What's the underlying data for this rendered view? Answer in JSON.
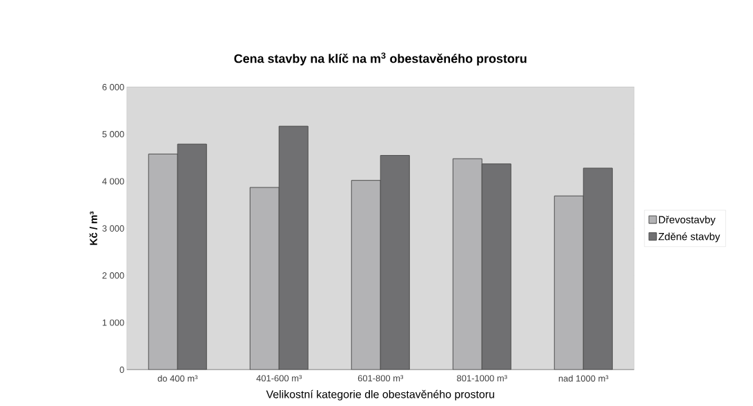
{
  "chart_data": {
    "type": "bar",
    "title": "Cena stavby na klíč na m$^{3}$ obestavěného prostoru",
    "xlabel": "Velikostní kategorie dle obestavěného prostoru",
    "ylabel": "Kč / m³",
    "categories": [
      "do 400 m³",
      "401-600 m³",
      "601-800 m³",
      "801-1000 m³",
      "nad 1000 m³"
    ],
    "series": [
      {
        "name": "Dřevostavby",
        "color": "#b3b3b5",
        "values": [
          4580,
          3870,
          4020,
          4480,
          3690
        ]
      },
      {
        "name": "Zděné stavby",
        "color": "#707072",
        "values": [
          4790,
          5170,
          4550,
          4370,
          4280
        ]
      }
    ],
    "ylim": [
      0,
      6000
    ],
    "yticks": [
      {
        "value": 0,
        "label": "0"
      },
      {
        "value": 1000,
        "label": "1 000"
      },
      {
        "value": 2000,
        "label": "2 000"
      },
      {
        "value": 3000,
        "label": "3 000"
      },
      {
        "value": 4000,
        "label": "4 000"
      },
      {
        "value": 5000,
        "label": "5 000"
      },
      {
        "value": 6000,
        "label": "6 000"
      }
    ],
    "grid": "y",
    "legend": "right"
  }
}
